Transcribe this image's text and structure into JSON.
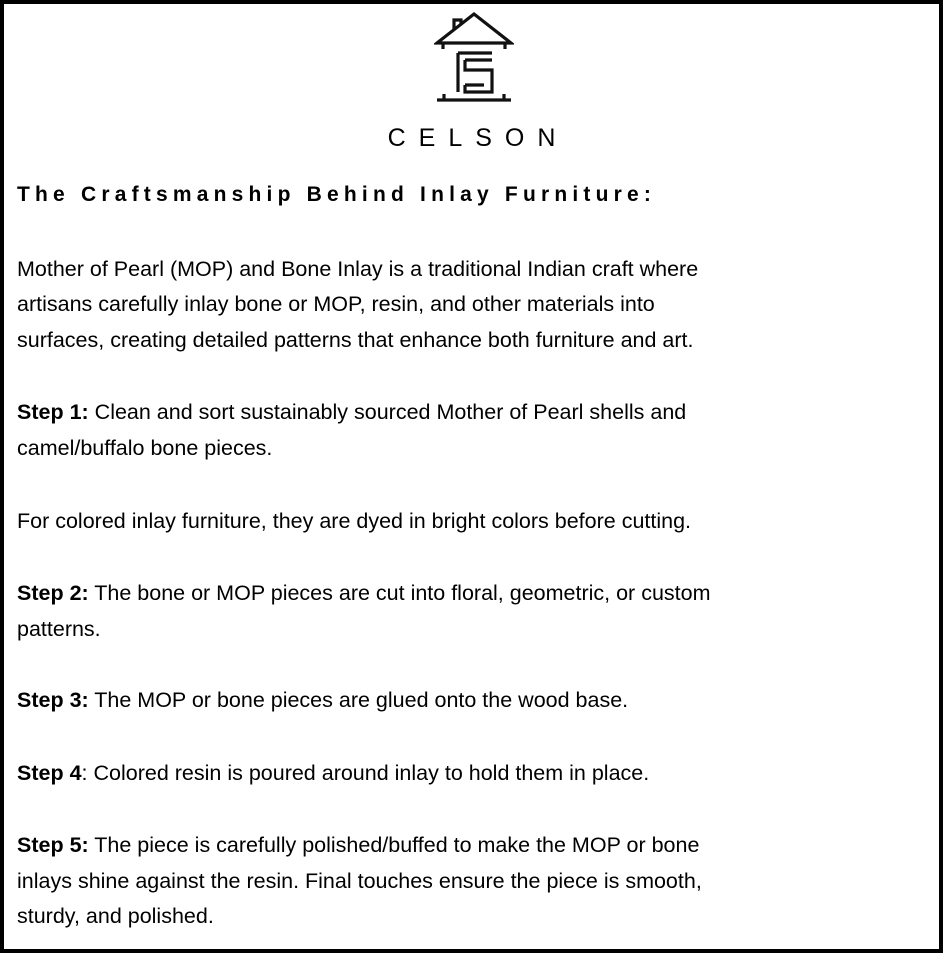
{
  "brand": {
    "name": "CELSON",
    "logo_icon": "house-c-logo"
  },
  "heading": "The Craftsmanship Behind Inlay Furniture:",
  "intro": [
    "Mother of Pearl (MOP) and Bone Inlay is a traditional Indian craft where",
    "artisans carefully inlay bone or MOP, resin, and other materials into",
    "surfaces, creating detailed patterns that enhance both furniture and art."
  ],
  "step1": {
    "label": "Step 1:",
    "lines": [
      " Clean and sort sustainably sourced Mother of Pearl shells and",
      "camel/buffalo bone pieces."
    ]
  },
  "note": "For colored inlay furniture, they are dyed in bright colors before cutting.",
  "step2": {
    "label": "Step 2:",
    "lines": [
      " The bone or MOP pieces are cut into floral, geometric, or custom",
      "patterns."
    ]
  },
  "step3": {
    "label": "Step 3:",
    "lines": [
      " The MOP or bone pieces are glued onto the wood base."
    ]
  },
  "step4": {
    "label": "Step 4",
    "lines": [
      ": Colored resin is poured around inlay to hold them in place."
    ]
  },
  "step5": {
    "label": "Step 5:",
    "lines": [
      " The piece is carefully polished/buffed to make the MOP or bone",
      "inlays shine against the resin. Final touches ensure the piece is smooth,",
      "sturdy, and polished."
    ]
  }
}
